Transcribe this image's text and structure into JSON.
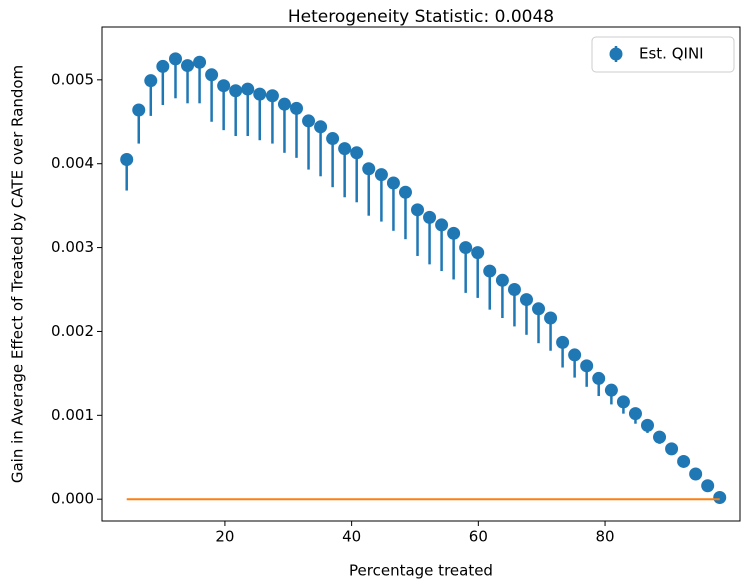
{
  "chart_data": {
    "type": "errorbar",
    "title": "Heterogeneity Statistic: 0.0048",
    "x_label": "Percentage treated",
    "y_label": "Gain in Average Effect of Treated by CATE over Random",
    "xlim": [
      0.6,
      101.3
    ],
    "ylim": [
      -0.00026,
      0.00563
    ],
    "xticks": [
      20,
      40,
      60,
      80
    ],
    "yticks": [
      {
        "value": 0,
        "label": "0.000"
      },
      {
        "value": 0.001,
        "label": "0.001"
      },
      {
        "value": 0.002,
        "label": "0.002"
      },
      {
        "value": 0.003,
        "label": "0.003"
      },
      {
        "value": 0.004,
        "label": "0.004"
      },
      {
        "value": 0.005,
        "label": "0.005"
      }
    ],
    "legend": "upper right",
    "series": [
      {
        "name": "Est. QINI",
        "color": "#1f77b4",
        "x": [
          4.5,
          6.4,
          8.3,
          10.2,
          12.2,
          14.1,
          16.0,
          17.9,
          19.8,
          21.7,
          23.6,
          25.5,
          27.5,
          29.4,
          31.3,
          33.2,
          35.1,
          37.0,
          38.9,
          40.8,
          42.7,
          44.7,
          46.6,
          48.5,
          50.4,
          52.3,
          54.2,
          56.1,
          58.0,
          59.9,
          61.8,
          63.8,
          65.7,
          67.6,
          69.5,
          71.4,
          73.3,
          75.2,
          77.1,
          79.0,
          81.0,
          82.9,
          84.8,
          86.7,
          88.6,
          90.5,
          92.4,
          94.3,
          96.2,
          98.1
        ],
        "values": [
          0.00405,
          0.00464,
          0.00499,
          0.00516,
          0.00525,
          0.00517,
          0.00521,
          0.00506,
          0.00493,
          0.00487,
          0.00489,
          0.00483,
          0.00481,
          0.00471,
          0.00466,
          0.00451,
          0.00444,
          0.0043,
          0.00418,
          0.00413,
          0.00394,
          0.00387,
          0.00377,
          0.00366,
          0.00345,
          0.00336,
          0.00327,
          0.00317,
          0.003,
          0.00294,
          0.00272,
          0.00261,
          0.0025,
          0.00238,
          0.00227,
          0.00216,
          0.00187,
          0.00172,
          0.00159,
          0.00144,
          0.0013,
          0.00116,
          0.00102,
          0.00088,
          0.00074,
          0.0006,
          0.00045,
          0.0003,
          0.00016,
          2e-05
        ],
        "error_lower": [
          0.00037,
          0.0004,
          0.00042,
          0.00046,
          0.00047,
          0.00045,
          0.00049,
          0.00056,
          0.00053,
          0.00054,
          0.00056,
          0.00055,
          0.00057,
          0.00058,
          0.00059,
          0.00058,
          0.00059,
          0.00058,
          0.00058,
          0.00059,
          0.00056,
          0.00056,
          0.00057,
          0.00056,
          0.00055,
          0.00056,
          0.00055,
          0.00055,
          0.00054,
          0.00054,
          0.00046,
          0.00045,
          0.00044,
          0.00042,
          0.00041,
          0.00039,
          0.0003,
          0.00027,
          0.00025,
          0.00021,
          0.00017,
          0.00014,
          0.00012,
          9e-05,
          8e-05,
          6e-05,
          5e-05,
          3e-05,
          2e-05,
          0
        ]
      },
      {
        "color": "#ff7f0e",
        "x": [
          4.5,
          98.1
        ],
        "values": [
          0,
          0
        ]
      }
    ]
  }
}
